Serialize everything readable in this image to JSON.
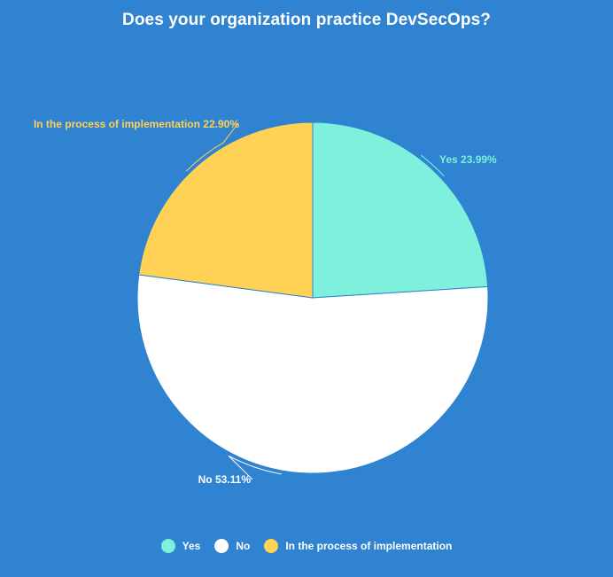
{
  "chart_data": {
    "type": "pie",
    "title": "Does your organization practice DevSecOps?",
    "slices": [
      {
        "name": "Yes",
        "value": 23.99,
        "label": "Yes 23.99%",
        "color": "#7ff0dc",
        "label_color": "#7ff0dc"
      },
      {
        "name": "No",
        "value": 53.11,
        "label": "No 53.11%",
        "color": "#ffffff",
        "label_color": "#ffffff"
      },
      {
        "name": "In the process of implementation",
        "value": 22.9,
        "label": "In the process of implementation 22.90%",
        "color": "#ffd255",
        "label_color": "#ffd255"
      }
    ],
    "legend": {
      "position": "bottom",
      "items": [
        "Yes",
        "No",
        "In the process of implementation"
      ]
    },
    "background": "#2f83d0"
  }
}
